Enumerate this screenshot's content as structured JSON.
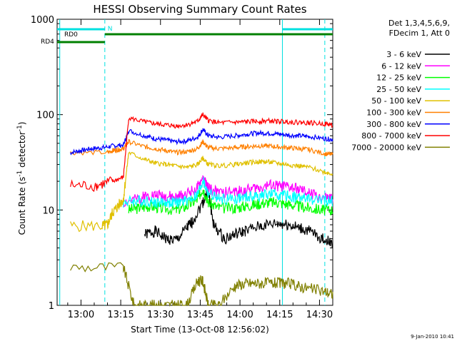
{
  "chart_data": {
    "type": "line",
    "title": "HESSI Observing Summary Count Rates",
    "xlabel": "Start Time (13-Oct-08 12:56:02)",
    "ylabel_main": "Count Rate (s",
    "ylabel_sup1": "-1",
    "ylabel_mid": " detector",
    "ylabel_sup2": "-1",
    "ylabel_end": ")",
    "footer": "9-Jan-2010 10:41",
    "x_range_minutes": [
      -5,
      37
    ],
    "y_scale": "log",
    "ylim": [
      1,
      1000
    ],
    "x_ticks": [
      {
        "label": "13:00",
        "min": 4
      },
      {
        "label": "13:15",
        "min": 19
      },
      {
        "label": "13:30",
        "min": 34
      },
      {
        "label": "13:45",
        "min": 49
      },
      {
        "label": "14:00",
        "min": 64
      },
      {
        "label": "14:15",
        "min": 79
      },
      {
        "label": "14:30",
        "min": 94
      }
    ],
    "y_ticks": [
      {
        "label": "1",
        "value": 1
      },
      {
        "label": "10",
        "value": 10
      },
      {
        "label": "100",
        "value": 100
      },
      {
        "label": "1000",
        "value": 1000
      }
    ],
    "legend_header": [
      "Det 1,3,4,5,6,9,",
      "FDecim 1, Att 0"
    ],
    "series": [
      {
        "name": "3 - 6 keV",
        "color": "#000000",
        "points": [
          [
            0,
            0
          ],
          [
            20,
            0
          ],
          [
            26,
            0
          ],
          [
            28,
            5.5
          ],
          [
            32,
            6.0
          ],
          [
            36,
            5.0
          ],
          [
            40,
            4.8
          ],
          [
            44,
            6.5
          ],
          [
            46,
            7.5
          ],
          [
            50,
            12
          ],
          [
            52,
            16
          ],
          [
            54,
            7.0
          ],
          [
            58,
            5.0
          ],
          [
            62,
            5.5
          ],
          [
            66,
            6.0
          ],
          [
            72,
            6.8
          ],
          [
            78,
            7.2
          ],
          [
            82,
            7.0
          ],
          [
            86,
            6.5
          ],
          [
            90,
            6.0
          ],
          [
            95,
            5.0
          ],
          [
            99,
            4.5
          ]
        ]
      },
      {
        "name": "6 - 12 keV",
        "color": "#ff00ff",
        "points": [
          [
            14,
            0
          ],
          [
            18,
            0
          ],
          [
            20,
            12
          ],
          [
            26,
            13
          ],
          [
            28,
            14
          ],
          [
            32,
            14.5
          ],
          [
            36,
            14
          ],
          [
            40,
            13.5
          ],
          [
            44,
            15
          ],
          [
            48,
            17
          ],
          [
            50,
            22
          ],
          [
            52,
            17
          ],
          [
            56,
            15
          ],
          [
            62,
            15.5
          ],
          [
            66,
            16
          ],
          [
            70,
            17
          ],
          [
            74,
            18
          ],
          [
            78,
            18
          ],
          [
            82,
            17.5
          ],
          [
            86,
            16.5
          ],
          [
            90,
            15
          ],
          [
            96,
            13.5
          ],
          [
            99,
            13
          ]
        ]
      },
      {
        "name": "12 - 25 keV",
        "color": "#00ff00",
        "points": [
          [
            0,
            0
          ],
          [
            20,
            0
          ],
          [
            22,
            10
          ],
          [
            26,
            10.5
          ],
          [
            30,
            11
          ],
          [
            34,
            10.5
          ],
          [
            40,
            10
          ],
          [
            44,
            11
          ],
          [
            48,
            13
          ],
          [
            50,
            17
          ],
          [
            52,
            12
          ],
          [
            56,
            10.5
          ],
          [
            62,
            10.5
          ],
          [
            66,
            11
          ],
          [
            70,
            11.5
          ],
          [
            74,
            12
          ],
          [
            78,
            12
          ],
          [
            82,
            11.5
          ],
          [
            86,
            11
          ],
          [
            90,
            10.5
          ],
          [
            95,
            10
          ],
          [
            99,
            10
          ]
        ]
      },
      {
        "name": "25 - 50 keV",
        "color": "#00ffff",
        "points": [
          [
            14,
            0
          ],
          [
            18,
            0
          ],
          [
            20,
            12
          ],
          [
            24,
            12.5
          ],
          [
            28,
            12.5
          ],
          [
            32,
            12
          ],
          [
            36,
            12
          ],
          [
            40,
            12
          ],
          [
            44,
            12.5
          ],
          [
            48,
            14.5
          ],
          [
            50,
            20
          ],
          [
            52,
            15
          ],
          [
            56,
            13
          ],
          [
            62,
            13
          ],
          [
            66,
            13.5
          ],
          [
            70,
            14
          ],
          [
            74,
            14.5
          ],
          [
            78,
            14.5
          ],
          [
            82,
            14
          ],
          [
            86,
            13.5
          ],
          [
            90,
            13
          ],
          [
            96,
            12.5
          ],
          [
            99,
            12.5
          ]
        ]
      },
      {
        "name": "50 - 100 keV",
        "color": "#e0c000",
        "points": [
          [
            0,
            6.8
          ],
          [
            12,
            6.8
          ],
          [
            14,
            7.0
          ],
          [
            16,
            9.5
          ],
          [
            18,
            11
          ],
          [
            20,
            13
          ],
          [
            22,
            40
          ],
          [
            28,
            34
          ],
          [
            32,
            31
          ],
          [
            36,
            30
          ],
          [
            40,
            29
          ],
          [
            44,
            28
          ],
          [
            48,
            30
          ],
          [
            50,
            35
          ],
          [
            52,
            30
          ],
          [
            56,
            29
          ],
          [
            62,
            30
          ],
          [
            66,
            31
          ],
          [
            70,
            32
          ],
          [
            74,
            32
          ],
          [
            78,
            31
          ],
          [
            82,
            30
          ],
          [
            86,
            29
          ],
          [
            90,
            28
          ],
          [
            96,
            25
          ],
          [
            99,
            24
          ]
        ]
      },
      {
        "name": "100 - 300 keV",
        "color": "#ff8000",
        "points": [
          [
            0,
            40
          ],
          [
            14,
            40
          ],
          [
            16,
            42
          ],
          [
            18,
            43
          ],
          [
            20,
            44
          ],
          [
            22,
            52
          ],
          [
            28,
            46
          ],
          [
            32,
            44
          ],
          [
            36,
            42
          ],
          [
            40,
            40
          ],
          [
            44,
            41
          ],
          [
            48,
            44
          ],
          [
            50,
            52
          ],
          [
            52,
            45
          ],
          [
            56,
            44
          ],
          [
            62,
            45
          ],
          [
            66,
            46
          ],
          [
            70,
            47
          ],
          [
            74,
            47
          ],
          [
            78,
            46
          ],
          [
            82,
            45
          ],
          [
            86,
            44
          ],
          [
            90,
            43
          ],
          [
            96,
            39
          ],
          [
            99,
            38
          ]
        ]
      },
      {
        "name": "300 - 800 keV",
        "color": "#0000ff",
        "points": [
          [
            0,
            40
          ],
          [
            4,
            42
          ],
          [
            8,
            44
          ],
          [
            12,
            45
          ],
          [
            16,
            47
          ],
          [
            20,
            48
          ],
          [
            22,
            68
          ],
          [
            28,
            60
          ],
          [
            32,
            56
          ],
          [
            36,
            54
          ],
          [
            40,
            52
          ],
          [
            44,
            53
          ],
          [
            48,
            58
          ],
          [
            50,
            70
          ],
          [
            52,
            60
          ],
          [
            56,
            58
          ],
          [
            62,
            60
          ],
          [
            66,
            62
          ],
          [
            70,
            64
          ],
          [
            74,
            64
          ],
          [
            78,
            63
          ],
          [
            82,
            61
          ],
          [
            86,
            60
          ],
          [
            90,
            59
          ],
          [
            96,
            56
          ],
          [
            99,
            55
          ]
        ]
      },
      {
        "name": "800 - 7000 keV",
        "color": "#ff0000",
        "points": [
          [
            0,
            18
          ],
          [
            10,
            18
          ],
          [
            16,
            20
          ],
          [
            20,
            22
          ],
          [
            22,
            92
          ],
          [
            28,
            84
          ],
          [
            32,
            80
          ],
          [
            36,
            78
          ],
          [
            40,
            76
          ],
          [
            44,
            78
          ],
          [
            48,
            85
          ],
          [
            50,
            100
          ],
          [
            52,
            87
          ],
          [
            56,
            82
          ],
          [
            62,
            83
          ],
          [
            66,
            84
          ],
          [
            70,
            85
          ],
          [
            74,
            86
          ],
          [
            78,
            85
          ],
          [
            82,
            84
          ],
          [
            86,
            83
          ],
          [
            90,
            82
          ],
          [
            96,
            80
          ],
          [
            99,
            78
          ]
        ]
      },
      {
        "name": "7000 - 20000 keV",
        "color": "#808000",
        "points": [
          [
            0,
            2.5
          ],
          [
            20,
            2.5
          ],
          [
            24,
            1.0
          ],
          [
            28,
            1.0
          ],
          [
            32,
            1.0
          ],
          [
            36,
            1.0
          ],
          [
            40,
            1.0
          ],
          [
            44,
            1.0
          ],
          [
            48,
            1.8
          ],
          [
            50,
            1.8
          ],
          [
            52,
            1.0
          ],
          [
            56,
            1.0
          ],
          [
            62,
            1.6
          ],
          [
            66,
            1.7
          ],
          [
            70,
            1.7
          ],
          [
            74,
            1.7
          ],
          [
            78,
            1.7
          ],
          [
            82,
            1.7
          ],
          [
            86,
            1.6
          ],
          [
            90,
            1.5
          ],
          [
            96,
            1.4
          ],
          [
            99,
            1.3
          ]
        ]
      }
    ],
    "overlays": [
      {
        "label": "RD0",
        "color": "#00e0e0"
      },
      {
        "label": "RD4",
        "color": "#008000"
      },
      {
        "label": "N",
        "color": "#00e0e0"
      }
    ]
  }
}
